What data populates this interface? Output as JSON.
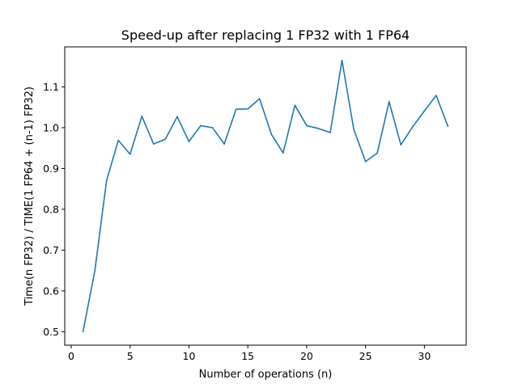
{
  "chart_data": {
    "type": "line",
    "title": "Speed-up after replacing 1 FP32 with 1 FP64",
    "xlabel": "Number of operations (n)",
    "ylabel": "Time(n FP32) / TIME(1 FP64 + (n-1) FP32)",
    "xlim": [
      -0.55,
      33.55
    ],
    "ylim": [
      0.467,
      1.198
    ],
    "xticks": [
      0,
      5,
      10,
      15,
      20,
      25,
      30
    ],
    "yticks": [
      0.5,
      0.6,
      0.7,
      0.8,
      0.9,
      1.0,
      1.1
    ],
    "xtick_labels": [
      "0",
      "5",
      "10",
      "15",
      "20",
      "25",
      "30"
    ],
    "ytick_labels": [
      "0.5",
      "0.6",
      "0.7",
      "0.8",
      "0.9",
      "1.0",
      "1.1"
    ],
    "grid": false,
    "line_color": "#1f77b4",
    "series": [
      {
        "x": [
          1,
          2,
          3,
          4,
          5,
          6,
          7,
          8,
          9,
          10,
          11,
          12,
          13,
          14,
          15,
          16,
          17,
          18,
          19,
          20,
          21,
          22,
          23,
          24,
          25,
          26,
          27,
          28,
          29,
          30,
          31,
          32
        ],
        "values": [
          0.5,
          0.648,
          0.87,
          0.969,
          0.935,
          1.028,
          0.96,
          0.972,
          1.027,
          0.966,
          1.005,
          1.0,
          0.96,
          1.045,
          1.046,
          1.071,
          0.984,
          0.938,
          1.055,
          1.005,
          0.998,
          0.988,
          1.165,
          0.996,
          0.917,
          0.938,
          1.064,
          0.958,
          1.002,
          1.041,
          1.079,
          1.003
        ]
      }
    ]
  }
}
